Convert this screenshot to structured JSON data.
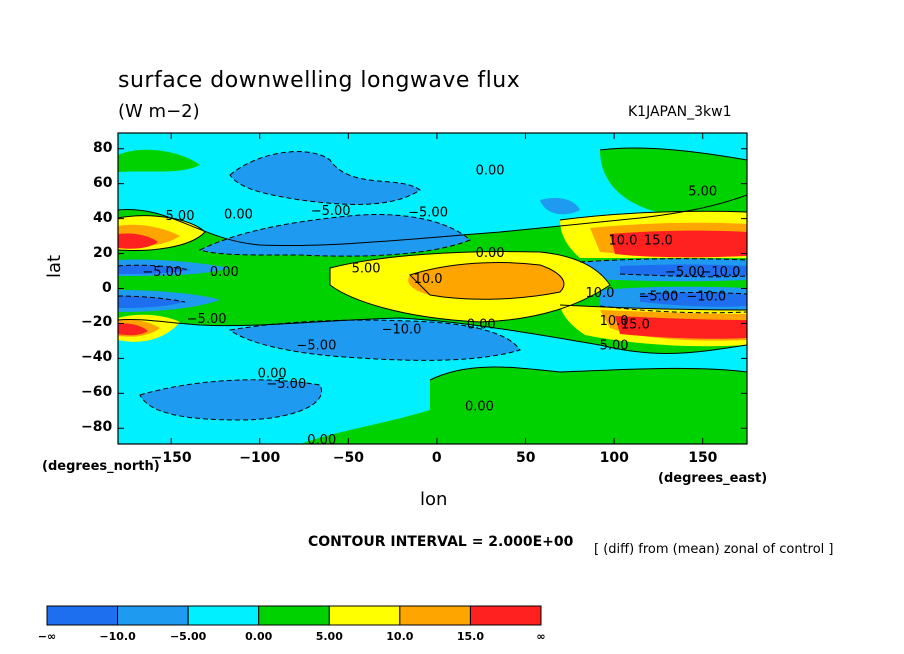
{
  "chart_data": {
    "type": "heatmap",
    "title": "surface downwelling longwave flux",
    "units": "(W m−2)",
    "run_label": "K1JAPAN_3kw1",
    "xlabel": "lon",
    "ylabel": "lat",
    "x_units_label": "(degrees_east)",
    "y_units_label": "(degrees_north)",
    "xlim": [
      -180,
      175
    ],
    "ylim": [
      -89,
      89
    ],
    "x_ticks": [
      -150,
      -100,
      -50,
      0,
      50,
      100,
      150
    ],
    "y_ticks": [
      80,
      60,
      40,
      20,
      0,
      -20,
      -40,
      -60,
      -80
    ],
    "x_tick_labels": [
      "−150",
      "−100",
      "−50",
      "0",
      "50",
      "100",
      "150"
    ],
    "y_tick_labels": [
      "80",
      "60",
      "40",
      "20",
      "0",
      "−20",
      "−40",
      "−60",
      "−80"
    ],
    "contour_interval_text": "CONTOUR INTERVAL = 2.000E+00",
    "comparison_note": "[ (diff) from (mean) zonal of control ]",
    "colorbar": {
      "boundaries": [
        "−∞",
        "−10.0",
        "−5.00",
        "0.00",
        "5.00",
        "10.0",
        "15.0",
        "∞"
      ],
      "colors": [
        "#1e6ef0",
        "#1e9bf0",
        "#00f0ff",
        "#00d200",
        "#ffff00",
        "#ffa500",
        "#ff2020"
      ]
    },
    "contour_labels": [
      {
        "text": "0.00",
        "lon": 30,
        "lat": 68
      },
      {
        "text": "5.00",
        "lon": 150,
        "lat": 56
      },
      {
        "text": "5.00",
        "lon": -145,
        "lat": 42
      },
      {
        "text": "0.00",
        "lon": -112,
        "lat": 43
      },
      {
        "text": "−5.00",
        "lon": -60,
        "lat": 45
      },
      {
        "text": "−5.00",
        "lon": -5,
        "lat": 44
      },
      {
        "text": "10.0",
        "lon": 105,
        "lat": 28
      },
      {
        "text": "15.0",
        "lon": 125,
        "lat": 28
      },
      {
        "text": "0.00",
        "lon": 30,
        "lat": 21
      },
      {
        "text": "5.00",
        "lon": -40,
        "lat": 12
      },
      {
        "text": "10.0",
        "lon": -5,
        "lat": 6
      },
      {
        "text": "−5.00",
        "lon": -155,
        "lat": 10
      },
      {
        "text": "0.00",
        "lon": -120,
        "lat": 10
      },
      {
        "text": "−5.00",
        "lon": 140,
        "lat": 10
      },
      {
        "text": "−10.0",
        "lon": 160,
        "lat": 10
      },
      {
        "text": "10.0",
        "lon": 92,
        "lat": -2
      },
      {
        "text": "−5.00",
        "lon": 125,
        "lat": -4
      },
      {
        "text": "−10.0",
        "lon": 152,
        "lat": -4
      },
      {
        "text": "−5.00",
        "lon": -130,
        "lat": -17
      },
      {
        "text": "−10.0",
        "lon": -20,
        "lat": -23
      },
      {
        "text": "0.00",
        "lon": 25,
        "lat": -20
      },
      {
        "text": "10.0",
        "lon": 100,
        "lat": -18
      },
      {
        "text": "15.0",
        "lon": 112,
        "lat": -20
      },
      {
        "text": "−5.00",
        "lon": -68,
        "lat": -32
      },
      {
        "text": "5.00",
        "lon": 100,
        "lat": -32
      },
      {
        "text": "0.00",
        "lon": -93,
        "lat": -48
      },
      {
        "text": "−5.00",
        "lon": -85,
        "lat": -54
      },
      {
        "text": "0.00",
        "lon": 24,
        "lat": -67
      },
      {
        "text": "0.00",
        "lon": -65,
        "lat": -86
      }
    ]
  }
}
